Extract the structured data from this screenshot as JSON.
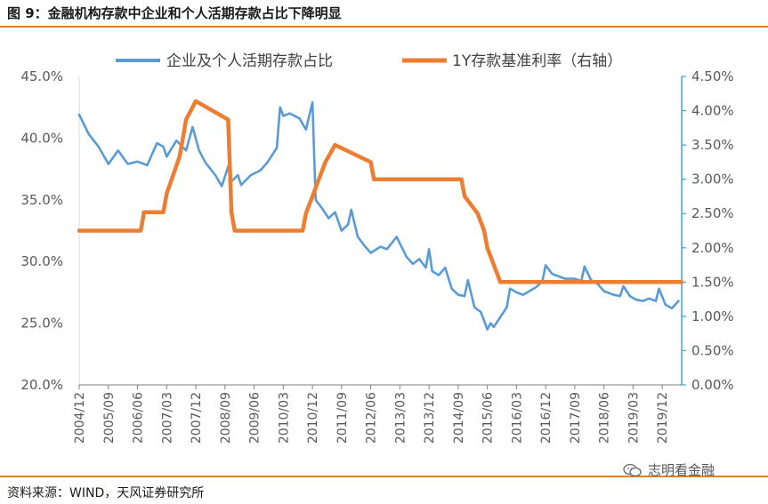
{
  "title": "图 9：金融机构存款中企业和个人活期存款占比下降明显",
  "source": "资料来源：WIND，天风证券研究所",
  "watermark": "志明看金融",
  "watermark_icon": "wechat-icon",
  "colors": {
    "series1": "#5b9bd5",
    "series2": "#ed7d31",
    "rule": "#e67e22",
    "axis_right": "#3aa7d8"
  },
  "chart_data": {
    "type": "line",
    "legend_position": "top",
    "grid": false,
    "x_tick_labels": [
      "2004/12",
      "2005/09",
      "2006/06",
      "2007/03",
      "2007/12",
      "2008/09",
      "2009/06",
      "2010/03",
      "2010/12",
      "2011/09",
      "2012/06",
      "2013/03",
      "2013/12",
      "2014/09",
      "2015/06",
      "2016/03",
      "2016/12",
      "2017/09",
      "2018/06",
      "2019/03",
      "2019/12"
    ],
    "x_range": [
      "2004-12",
      "2020-06"
    ],
    "y_left": {
      "ylim": [
        20,
        45
      ],
      "ticks": [
        "20.0%",
        "25.0%",
        "30.0%",
        "35.0%",
        "40.0%",
        "45.0%"
      ]
    },
    "y_right": {
      "ylim": [
        0,
        4.5
      ],
      "ticks": [
        "0.00%",
        "0.50%",
        "1.00%",
        "1.50%",
        "2.00%",
        "2.50%",
        "3.00%",
        "3.50%",
        "4.00%",
        "4.50%"
      ]
    },
    "series": [
      {
        "name": "企业及个人活期存款占比",
        "axis": "left",
        "color": "#5b9bd5",
        "points": [
          [
            "2004-12",
            41.9
          ],
          [
            "2005-03",
            40.3
          ],
          [
            "2005-06",
            39.3
          ],
          [
            "2005-09",
            37.9
          ],
          [
            "2005-12",
            39.0
          ],
          [
            "2006-03",
            37.9
          ],
          [
            "2006-06",
            38.1
          ],
          [
            "2006-09",
            37.8
          ],
          [
            "2006-12",
            39.6
          ],
          [
            "2007-02",
            39.3
          ],
          [
            "2007-03",
            38.5
          ],
          [
            "2007-06",
            39.8
          ],
          [
            "2007-09",
            39.0
          ],
          [
            "2007-11",
            40.9
          ],
          [
            "2008-01",
            39.0
          ],
          [
            "2008-03",
            38.0
          ],
          [
            "2008-06",
            37.0
          ],
          [
            "2008-08",
            36.1
          ],
          [
            "2008-10",
            37.7
          ],
          [
            "2008-11",
            36.5
          ],
          [
            "2009-01",
            37.0
          ],
          [
            "2009-02",
            36.2
          ],
          [
            "2009-05",
            37.0
          ],
          [
            "2009-08",
            37.4
          ],
          [
            "2009-10",
            38.0
          ],
          [
            "2010-01",
            39.2
          ],
          [
            "2010-02",
            42.5
          ],
          [
            "2010-03",
            41.8
          ],
          [
            "2010-05",
            42.0
          ],
          [
            "2010-08",
            41.6
          ],
          [
            "2010-10",
            40.7
          ],
          [
            "2010-12",
            42.9
          ],
          [
            "2011-01",
            35.0
          ],
          [
            "2011-03",
            34.3
          ],
          [
            "2011-05",
            33.5
          ],
          [
            "2011-07",
            34.0
          ],
          [
            "2011-09",
            32.5
          ],
          [
            "2011-11",
            33.0
          ],
          [
            "2011-12",
            34.2
          ],
          [
            "2012-02",
            32.0
          ],
          [
            "2012-04",
            31.3
          ],
          [
            "2012-06",
            30.7
          ],
          [
            "2012-09",
            31.2
          ],
          [
            "2012-11",
            31.0
          ],
          [
            "2013-02",
            32.0
          ],
          [
            "2013-05",
            30.4
          ],
          [
            "2013-07",
            29.8
          ],
          [
            "2013-09",
            30.2
          ],
          [
            "2013-11",
            29.5
          ],
          [
            "2013-12",
            31.0
          ],
          [
            "2014-01",
            29.2
          ],
          [
            "2014-03",
            28.9
          ],
          [
            "2014-05",
            29.5
          ],
          [
            "2014-07",
            27.8
          ],
          [
            "2014-09",
            27.3
          ],
          [
            "2014-11",
            27.2
          ],
          [
            "2014-12",
            28.5
          ],
          [
            "2015-02",
            26.3
          ],
          [
            "2015-04",
            25.9
          ],
          [
            "2015-06",
            24.5
          ],
          [
            "2015-07",
            25.0
          ],
          [
            "2015-08",
            24.7
          ],
          [
            "2015-10",
            25.5
          ],
          [
            "2015-12",
            26.3
          ],
          [
            "2016-01",
            27.8
          ],
          [
            "2016-03",
            27.5
          ],
          [
            "2016-05",
            27.3
          ],
          [
            "2016-07",
            27.6
          ],
          [
            "2016-09",
            27.9
          ],
          [
            "2016-11",
            28.4
          ],
          [
            "2016-12",
            29.7
          ],
          [
            "2017-02",
            29.0
          ],
          [
            "2017-04",
            28.8
          ],
          [
            "2017-06",
            28.6
          ],
          [
            "2017-09",
            28.6
          ],
          [
            "2017-11",
            28.4
          ],
          [
            "2017-12",
            29.6
          ],
          [
            "2018-02",
            28.5
          ],
          [
            "2018-04",
            28.2
          ],
          [
            "2018-06",
            27.6
          ],
          [
            "2018-09",
            27.3
          ],
          [
            "2018-11",
            27.2
          ],
          [
            "2018-12",
            28.0
          ],
          [
            "2019-02",
            27.2
          ],
          [
            "2019-04",
            26.9
          ],
          [
            "2019-06",
            26.8
          ],
          [
            "2019-08",
            27.0
          ],
          [
            "2019-10",
            26.8
          ],
          [
            "2019-11",
            27.8
          ],
          [
            "2020-01",
            26.5
          ],
          [
            "2020-03",
            26.2
          ],
          [
            "2020-05",
            26.8
          ]
        ]
      },
      {
        "name": "1Y存款基准利率（右轴）",
        "axis": "right",
        "color": "#ed7d31",
        "points": [
          [
            "2004-12",
            2.25
          ],
          [
            "2006-07",
            2.25
          ],
          [
            "2006-08",
            2.52
          ],
          [
            "2007-02",
            2.52
          ],
          [
            "2007-03",
            2.79
          ],
          [
            "2007-05",
            3.06
          ],
          [
            "2007-07",
            3.33
          ],
          [
            "2007-08",
            3.6
          ],
          [
            "2007-09",
            3.87
          ],
          [
            "2007-12",
            4.14
          ],
          [
            "2008-10",
            3.87
          ],
          [
            "2008-11",
            2.52
          ],
          [
            "2008-12",
            2.25
          ],
          [
            "2010-09",
            2.25
          ],
          [
            "2010-10",
            2.5
          ],
          [
            "2010-12",
            2.75
          ],
          [
            "2011-02",
            3.0
          ],
          [
            "2011-04",
            3.25
          ],
          [
            "2011-07",
            3.5
          ],
          [
            "2012-06",
            3.25
          ],
          [
            "2012-07",
            3.0
          ],
          [
            "2014-10",
            3.0
          ],
          [
            "2014-11",
            2.75
          ],
          [
            "2015-03",
            2.5
          ],
          [
            "2015-05",
            2.25
          ],
          [
            "2015-06",
            2.0
          ],
          [
            "2015-08",
            1.75
          ],
          [
            "2015-10",
            1.5
          ],
          [
            "2020-06",
            1.5
          ]
        ]
      }
    ]
  }
}
